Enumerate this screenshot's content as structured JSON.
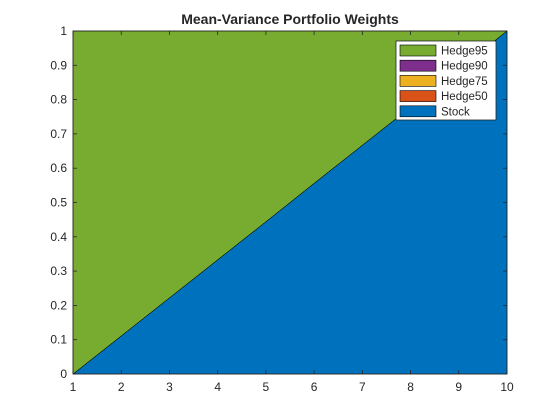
{
  "chart_data": {
    "type": "area",
    "title": "Mean-Variance Portfolio Weights",
    "xlabel": "",
    "ylabel": "",
    "xlim": [
      1,
      10
    ],
    "ylim": [
      0,
      1
    ],
    "x_ticks": [
      1,
      2,
      3,
      4,
      5,
      6,
      7,
      8,
      9,
      10
    ],
    "y_ticks": [
      0,
      0.1,
      0.2,
      0.3,
      0.4,
      0.5,
      0.6,
      0.7,
      0.8,
      0.9,
      1
    ],
    "x": [
      1,
      2,
      3,
      4,
      5,
      6,
      7,
      8,
      9,
      10
    ],
    "series": [
      {
        "name": "Stock",
        "color": "#0072BD",
        "values": [
          0,
          0.111,
          0.222,
          0.333,
          0.444,
          0.556,
          0.667,
          0.778,
          0.889,
          1
        ]
      },
      {
        "name": "Hedge50",
        "color": "#D95319",
        "values": [
          0,
          0,
          0,
          0,
          0,
          0,
          0,
          0,
          0,
          0
        ]
      },
      {
        "name": "Hedge75",
        "color": "#EDB120",
        "values": [
          0,
          0,
          0,
          0,
          0,
          0,
          0,
          0,
          0,
          0
        ]
      },
      {
        "name": "Hedge90",
        "color": "#7E2F8E",
        "values": [
          0,
          0,
          0,
          0,
          0,
          0,
          0,
          0,
          0,
          0
        ]
      },
      {
        "name": "Hedge95",
        "color": "#77AC30",
        "values": [
          1,
          0.889,
          0.778,
          0.667,
          0.556,
          0.444,
          0.333,
          0.222,
          0.111,
          0
        ]
      }
    ],
    "legend_order": [
      "Hedge95",
      "Hedge90",
      "Hedge75",
      "Hedge50",
      "Stock"
    ],
    "legend_position": "top-right",
    "grid": false
  }
}
